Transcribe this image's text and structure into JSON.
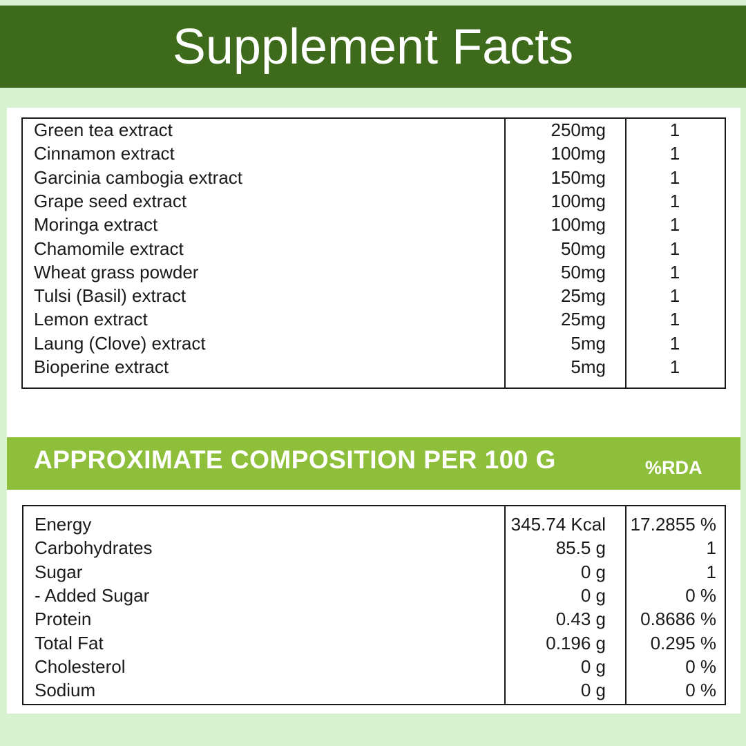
{
  "header": {
    "title": "Supplement Facts"
  },
  "supplement_rows": [
    {
      "name": "Green tea extract",
      "amount": "250mg",
      "rda": "1"
    },
    {
      "name": "Cinnamon extract",
      "amount": "100mg",
      "rda": "1"
    },
    {
      "name": "Garcinia cambogia extract",
      "amount": "150mg",
      "rda": "1"
    },
    {
      "name": "Grape seed extract",
      "amount": "100mg",
      "rda": "1"
    },
    {
      "name": "Moringa extract",
      "amount": "100mg",
      "rda": "1"
    },
    {
      "name": "Chamomile extract",
      "amount": "50mg",
      "rda": "1"
    },
    {
      "name": "Wheat grass powder",
      "amount": "50mg",
      "rda": "1"
    },
    {
      "name": "Tulsi (Basil) extract",
      "amount": "25mg",
      "rda": "1"
    },
    {
      "name": "Lemon extract",
      "amount": "25mg",
      "rda": "1"
    },
    {
      "name": "Laung (Clove) extract",
      "amount": "5mg",
      "rda": "1"
    },
    {
      "name": "Bioperine extract",
      "amount": "5mg",
      "rda": "1"
    }
  ],
  "composition": {
    "title": "APPROXIMATE COMPOSITION PER 100 G",
    "rda_label": "%RDA",
    "rows": [
      {
        "name": "Energy",
        "amount": "345.74 Kcal",
        "rda": "17.2855 %"
      },
      {
        "name": "Carbohydrates",
        "amount": "85.5 g",
        "rda": "1"
      },
      {
        "name": "Sugar",
        "amount": "0 g",
        "rda": "1"
      },
      {
        "name": "- Added Sugar",
        "amount": "0 g",
        "rda": "0 %"
      },
      {
        "name": "Protein",
        "amount": "0.43 g",
        "rda": "0.8686 %"
      },
      {
        "name": "Total Fat",
        "amount": "0.196 g",
        "rda": "0.295 %"
      },
      {
        "name": "Cholesterol",
        "amount": "0 g",
        "rda": "0 %"
      },
      {
        "name": "Sodium",
        "amount": "0 g",
        "rda": "0 %"
      }
    ]
  },
  "colors": {
    "header_bg": "#3e6b1b",
    "composition_band_bg": "#8ebf3a",
    "page_bg": "#d7f2cf"
  }
}
